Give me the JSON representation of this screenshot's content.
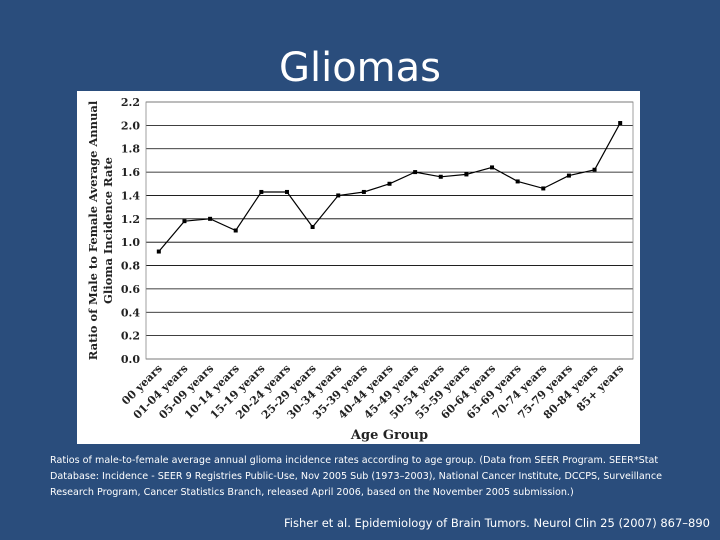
{
  "slide": {
    "title": "Gliomas",
    "caption": "Ratios of male-to-female average annual glioma incidence rates according to age group. (Data from SEER Program. SEER*Stat Database: Incidence - SEER 9 Registries Public-Use, Nov 2005 Sub (1973–2003), National Cancer Institute, DCCPS, Surveillance Research Program, Cancer Statistics Branch, released April 2006, based on the November 2005 submission.)",
    "citation": "Fisher et al. Epidemiology of Brain Tumors. Neurol Clin 25 (2007) 867–890"
  },
  "colors": {
    "background": "#2a4d7c",
    "line": "#000000",
    "grid": "#000000"
  },
  "chart_data": {
    "type": "line",
    "title": "",
    "xlabel": "Age Group",
    "ylabel_line1": "Ratio of Male to Female Average Annual",
    "ylabel_line2": "Glioma Incidence Rate",
    "ylim": [
      0.0,
      2.2
    ],
    "yticks": [
      "0.0",
      "0.2",
      "0.4",
      "0.6",
      "0.8",
      "1.0",
      "1.2",
      "1.4",
      "1.6",
      "1.8",
      "2.0",
      "2.2"
    ],
    "grid": true,
    "categories": [
      "00 years",
      "01-04 years",
      "05-09 years",
      "10-14 years",
      "15-19 years",
      "20-24 years",
      "25-29 years",
      "30-34 years",
      "35-39 years",
      "40-44 years",
      "45-49 years",
      "50-54 years",
      "55-59 years",
      "60-64 years",
      "65-69 years",
      "70-74 years",
      "75-79 years",
      "80-84 years",
      "85+ years"
    ],
    "values": [
      0.92,
      1.18,
      1.2,
      1.1,
      1.43,
      1.43,
      1.13,
      1.4,
      1.43,
      1.5,
      1.6,
      1.56,
      1.58,
      1.64,
      1.52,
      1.46,
      1.57,
      1.62,
      2.02
    ]
  }
}
